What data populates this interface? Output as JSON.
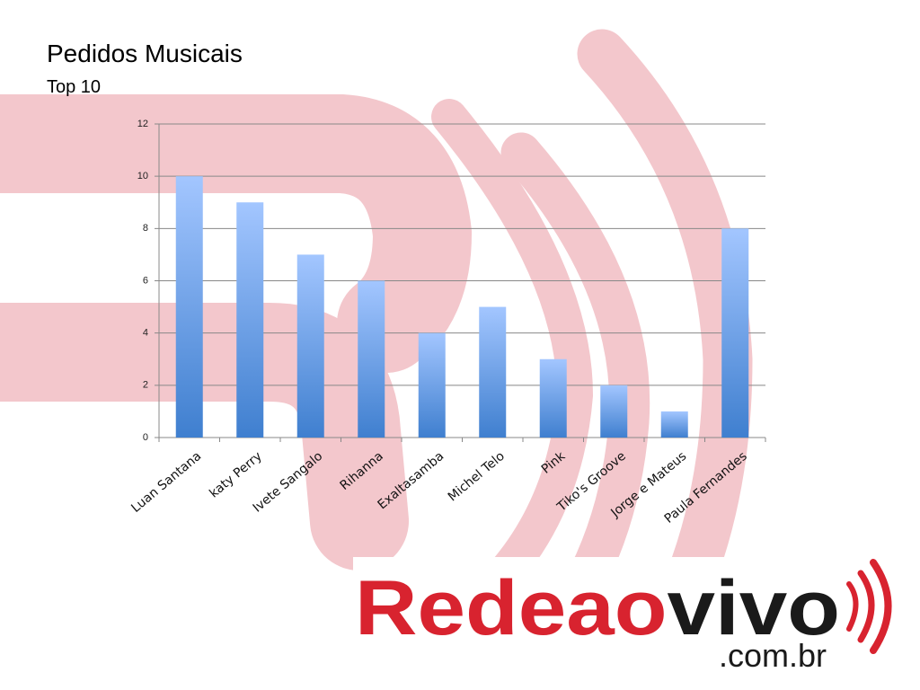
{
  "chart_data": {
    "type": "bar",
    "title": "Pedidos Musicais",
    "subtitle": "Top 10",
    "categories": [
      "Luan Santana",
      "katy Perry",
      "Ivete Sangalo",
      "Rihanna",
      "Exaltasamba",
      "Michel Telo",
      "Pink",
      "Tiko's Groove",
      "Jorge e Mateus",
      "Paula Fernandes"
    ],
    "values": [
      10,
      9,
      7,
      6,
      4,
      5,
      3,
      2,
      1,
      8
    ],
    "color": "#4a86d4",
    "ylim": [
      0,
      12
    ],
    "yticks": [
      0,
      2,
      4,
      6,
      8,
      10,
      12
    ],
    "grid": true
  },
  "logo": {
    "name_red": "Redeao",
    "name_black": "vivo",
    "domain": ".com.br"
  }
}
